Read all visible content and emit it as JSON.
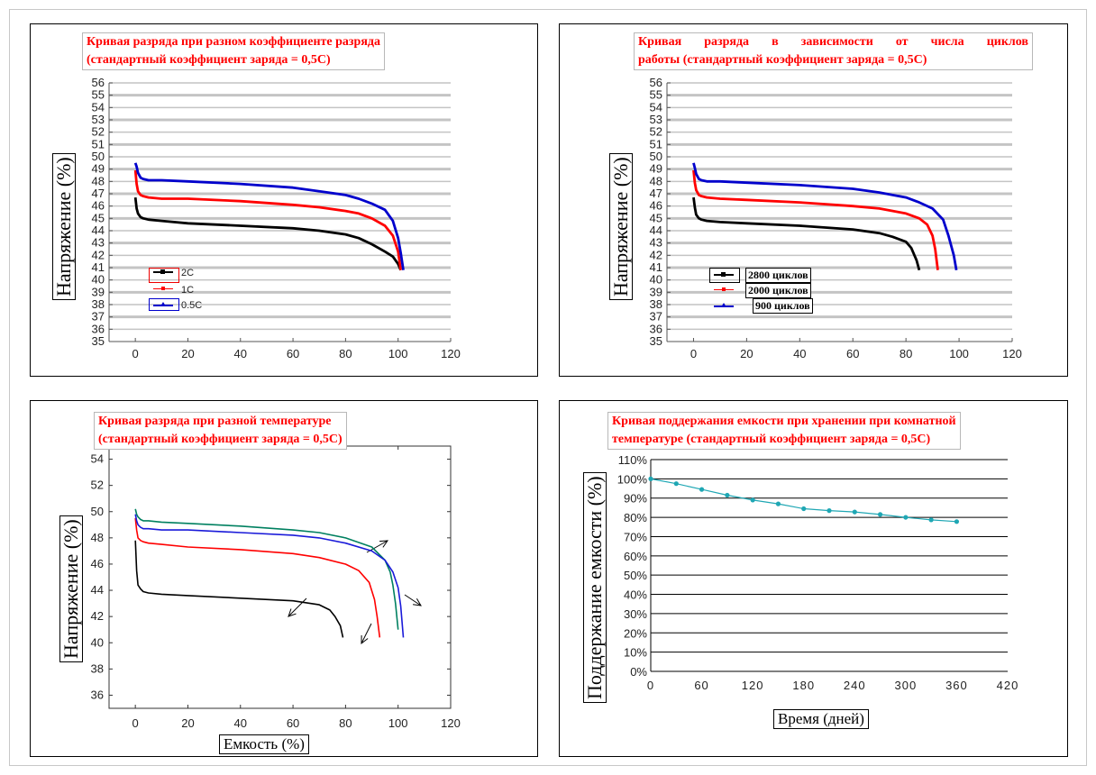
{
  "panels": [
    {
      "title_lines": [
        "Кривая разряда при разном коэффициенте разряда",
        "(стандартный коэффициент заряда = 0,5С)"
      ],
      "ylabel": "Напряжение (%)"
    },
    {
      "title_lines": [
        "Кривая разряда в зависимости от числа циклов",
        "работы (стандартный коэффициент заряда = 0,5С)"
      ],
      "ylabel": "Напряжение (%)"
    },
    {
      "title_lines": [
        "Кривая разряда при разной температуре",
        "(стандартный коэффициент заряда = 0,5С)"
      ],
      "ylabel": "Напряжение (%)",
      "xlabel": "Емкость (%)"
    },
    {
      "title_lines": [
        "Кривая поддержания емкости при хранении при комнатной",
        "температуре (стандартный коэффициент заряда = 0,5С)"
      ],
      "ylabel": "Поддержание емкости (%)",
      "xlabel": "Время (дней)"
    }
  ],
  "chart_data": [
    {
      "type": "line",
      "title": "Кривая разряда при разном коэффициенте разряда (стандартный коэффициент заряда = 0,5С)",
      "ylabel": "Напряжение (%)",
      "xlim": [
        -10,
        120
      ],
      "xticks": [
        0,
        20,
        40,
        60,
        80,
        100,
        120
      ],
      "ylim": [
        35,
        56
      ],
      "yticks": [
        35,
        36,
        37,
        38,
        39,
        40,
        41,
        42,
        43,
        44,
        45,
        46,
        47,
        48,
        49,
        50,
        51,
        52,
        53,
        54,
        55,
        56
      ],
      "grid": "horizontal",
      "legend_position": "lower-left",
      "series": [
        {
          "name": "2C",
          "color": "#000000",
          "x": [
            0,
            0.5,
            1,
            2,
            3,
            5,
            10,
            20,
            40,
            60,
            70,
            80,
            85,
            90,
            95,
            98,
            100,
            101
          ],
          "y": [
            46.7,
            45.8,
            45.4,
            45.1,
            45.0,
            44.9,
            44.8,
            44.6,
            44.4,
            44.2,
            44.0,
            43.7,
            43.4,
            42.9,
            42.3,
            41.9,
            41.3,
            40.8
          ]
        },
        {
          "name": "1C",
          "color": "#ff0000",
          "x": [
            0,
            0.5,
            1,
            2,
            3,
            5,
            10,
            20,
            40,
            60,
            70,
            80,
            85,
            90,
            95,
            98,
            100,
            101
          ],
          "y": [
            48.9,
            47.8,
            47.2,
            46.9,
            46.8,
            46.7,
            46.6,
            46.6,
            46.4,
            46.1,
            45.9,
            45.6,
            45.4,
            45.0,
            44.4,
            43.6,
            42.3,
            40.8
          ]
        },
        {
          "name": "0.5C",
          "color": "#0000cc",
          "x": [
            0,
            0.5,
            1,
            2,
            3,
            5,
            10,
            20,
            40,
            60,
            70,
            80,
            85,
            90,
            95,
            98,
            100,
            101,
            102
          ],
          "y": [
            49.5,
            49.2,
            48.7,
            48.3,
            48.2,
            48.1,
            48.1,
            48.0,
            47.8,
            47.5,
            47.2,
            46.9,
            46.6,
            46.2,
            45.7,
            44.8,
            43.4,
            42.2,
            40.8
          ]
        }
      ]
    },
    {
      "type": "line",
      "title": "Кривая разряда в зависимости от числа циклов работы (стандартный коэффициент заряда = 0,5С)",
      "ylabel": "Напряжение (%)",
      "xlim": [
        -10,
        120
      ],
      "xticks": [
        0,
        20,
        40,
        60,
        80,
        100,
        120
      ],
      "ylim": [
        35,
        56
      ],
      "yticks": [
        35,
        36,
        37,
        38,
        39,
        40,
        41,
        42,
        43,
        44,
        45,
        46,
        47,
        48,
        49,
        50,
        51,
        52,
        53,
        54,
        55,
        56
      ],
      "grid": "horizontal",
      "legend_position": "lower-left",
      "series": [
        {
          "name": "2800 циклов",
          "color": "#000000",
          "x": [
            0,
            0.5,
            1,
            2,
            3,
            5,
            10,
            20,
            40,
            60,
            70,
            75,
            80,
            82,
            84,
            85
          ],
          "y": [
            46.7,
            45.9,
            45.3,
            45.0,
            44.9,
            44.8,
            44.7,
            44.6,
            44.4,
            44.1,
            43.8,
            43.5,
            43.1,
            42.6,
            41.6,
            40.8
          ]
        },
        {
          "name": "2000 циклов",
          "color": "#ff0000",
          "x": [
            0,
            0.5,
            1,
            2,
            3,
            5,
            10,
            20,
            40,
            60,
            70,
            80,
            85,
            88,
            90,
            91,
            92
          ],
          "y": [
            48.9,
            47.9,
            47.3,
            46.9,
            46.8,
            46.7,
            46.6,
            46.5,
            46.3,
            46.0,
            45.8,
            45.4,
            45.0,
            44.5,
            43.6,
            42.5,
            40.8
          ]
        },
        {
          "name": "900 циклов",
          "color": "#0000cc",
          "x": [
            0,
            0.5,
            1,
            2,
            3,
            5,
            10,
            20,
            40,
            60,
            70,
            80,
            85,
            90,
            94,
            96,
            98,
            99
          ],
          "y": [
            49.5,
            49.1,
            48.6,
            48.2,
            48.1,
            48.0,
            48.0,
            47.9,
            47.7,
            47.4,
            47.1,
            46.7,
            46.3,
            45.8,
            44.9,
            43.6,
            42.0,
            40.8
          ]
        }
      ]
    },
    {
      "type": "line",
      "title": "Кривая разряда при разной температуре (стандартный коэффициент заряда = 0,5С)",
      "xlabel": "Емкость (%)",
      "ylabel": "Напряжение (%)",
      "xlim": [
        -10,
        120
      ],
      "xticks": [
        0,
        20,
        40,
        60,
        80,
        100,
        120
      ],
      "ylim": [
        35,
        55
      ],
      "yticks": [
        36,
        38,
        40,
        42,
        44,
        46,
        48,
        50,
        52,
        54
      ],
      "grid": "none",
      "series": [
        {
          "color": "#000000",
          "x": [
            0,
            0.5,
            1,
            2,
            3,
            5,
            10,
            20,
            40,
            60,
            70,
            74,
            76,
            78,
            79
          ],
          "y": [
            47.8,
            45.5,
            44.4,
            44.1,
            43.9,
            43.8,
            43.7,
            43.6,
            43.4,
            43.2,
            42.9,
            42.5,
            42.0,
            41.3,
            40.4
          ]
        },
        {
          "color": "#ff0000",
          "x": [
            0,
            0.5,
            1,
            2,
            3,
            5,
            10,
            20,
            40,
            60,
            70,
            80,
            85,
            89,
            91,
            92,
            93
          ],
          "y": [
            49.5,
            48.6,
            48.0,
            47.8,
            47.7,
            47.6,
            47.5,
            47.3,
            47.1,
            46.8,
            46.5,
            46.0,
            45.5,
            44.6,
            43.3,
            42.0,
            40.4
          ]
        },
        {
          "color": "#008060",
          "x": [
            0,
            0.5,
            1,
            2,
            3,
            5,
            10,
            20,
            40,
            60,
            70,
            80,
            90,
            95,
            97,
            98,
            99,
            100
          ],
          "y": [
            50.2,
            49.8,
            49.6,
            49.4,
            49.3,
            49.3,
            49.2,
            49.1,
            48.9,
            48.6,
            48.4,
            48.0,
            47.3,
            46.3,
            45.4,
            44.4,
            43.0,
            41.0
          ]
        },
        {
          "color": "#1a1ad9",
          "x": [
            0,
            0.5,
            1,
            2,
            3,
            5,
            10,
            20,
            40,
            60,
            70,
            80,
            90,
            95,
            98,
            100,
            101,
            102
          ],
          "y": [
            49.8,
            49.3,
            49.0,
            48.8,
            48.7,
            48.7,
            48.6,
            48.6,
            48.4,
            48.2,
            48.0,
            47.6,
            47.0,
            46.3,
            45.4,
            44.2,
            42.8,
            40.4
          ]
        }
      ]
    },
    {
      "type": "line",
      "title": "Кривая поддержания емкости при хранении при комнатной температуре (стандартный коэффициент заряда = 0,5С)",
      "xlabel": "Время (дней)",
      "ylabel": "Поддержание емкости (%)",
      "xlim": [
        0,
        420
      ],
      "xticks": [
        0,
        60,
        120,
        180,
        240,
        300,
        360,
        420
      ],
      "ylim": [
        0,
        110
      ],
      "yticks": [
        0,
        10,
        20,
        30,
        40,
        50,
        60,
        70,
        80,
        90,
        100,
        110
      ],
      "ytick_labels": [
        "0%",
        "10%",
        "20%",
        "30%",
        "40%",
        "50%",
        "60%",
        "70%",
        "80%",
        "90%",
        "100%",
        "110%"
      ],
      "grid": "horizontal",
      "series": [
        {
          "color": "#1fa7b4",
          "markers": true,
          "x": [
            0,
            30,
            60,
            90,
            120,
            150,
            180,
            210,
            240,
            270,
            300,
            330,
            360
          ],
          "y": [
            100,
            97.5,
            94.5,
            91.5,
            89,
            87,
            84.5,
            83.5,
            82.8,
            81.5,
            80,
            78.7,
            77.8
          ]
        }
      ]
    }
  ]
}
